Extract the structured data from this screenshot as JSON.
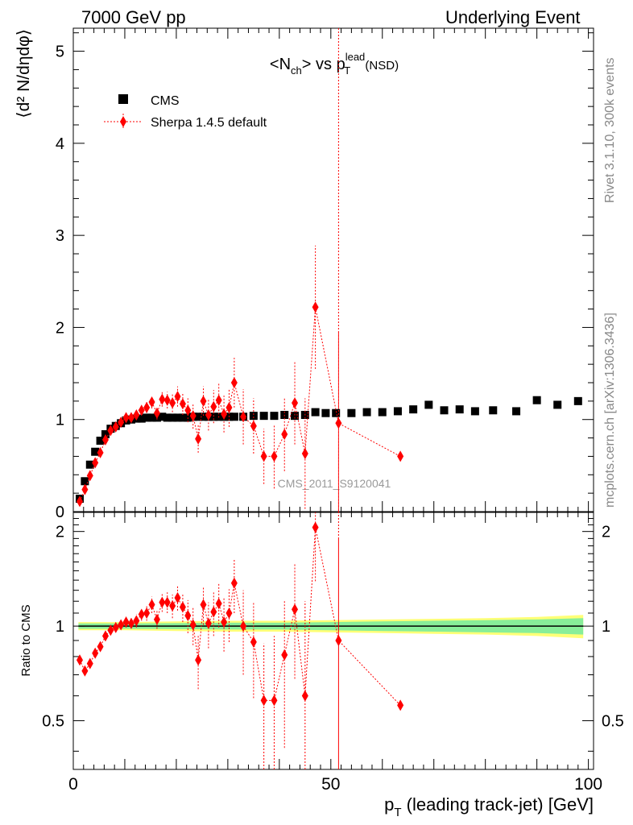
{
  "header": {
    "left": "7000 GeV pp",
    "right": "Underlying Event"
  },
  "side_texts": {
    "rivet": "Rivet 3.1.10,  300k events",
    "mcplots": "mcplots.cern.ch [arXiv:1306.3436]"
  },
  "chart_data": [
    {
      "type": "scatter",
      "panel": "main",
      "title_main": "<N",
      "title_sub": "ch",
      "title_mid": "> vs p",
      "title_sup": "lead",
      "title_sub2": "T",
      "title_tail": " (NSD)",
      "ylabel": "⟨d² N/dηdφ⟩",
      "watermark": "CMS_2011_S9120041",
      "xlim": [
        0,
        101
      ],
      "ylim": [
        0,
        5.25
      ],
      "yticks": [
        0,
        1,
        2,
        3,
        4,
        5
      ],
      "ytick_labels": [
        "0",
        "1",
        "2",
        "3",
        "4",
        "5"
      ],
      "legend": [
        "CMS",
        "Sherpa 1.4.5 default"
      ],
      "series": [
        {
          "name": "CMS",
          "color": "#000000",
          "marker": "square",
          "x": [
            1.25,
            2.25,
            3.25,
            4.25,
            5.25,
            6.25,
            7.25,
            8.25,
            9.25,
            10.25,
            11.25,
            12.25,
            13.25,
            14.25,
            15.25,
            16.25,
            17.25,
            18.25,
            19.25,
            20.25,
            21.25,
            22.25,
            23.25,
            24.25,
            25.25,
            26.25,
            27.25,
            28.25,
            29.25,
            30.25,
            31.25,
            33.0,
            35.0,
            37.0,
            39.0,
            41.0,
            43.0,
            45.0,
            47.0,
            49.0,
            51.0,
            54.0,
            57.0,
            60.0,
            63.0,
            66.0,
            69.0,
            72.0,
            75.0,
            78.0,
            81.5,
            86.0,
            90.0,
            94.0,
            98.0
          ],
          "values": [
            0.14,
            0.33,
            0.51,
            0.65,
            0.77,
            0.84,
            0.9,
            0.93,
            0.96,
            0.99,
            1.0,
            1.01,
            1.01,
            1.02,
            1.02,
            1.02,
            1.03,
            1.02,
            1.02,
            1.02,
            1.02,
            1.02,
            1.03,
            1.03,
            1.03,
            1.03,
            1.03,
            1.03,
            1.03,
            1.03,
            1.03,
            1.03,
            1.04,
            1.04,
            1.04,
            1.05,
            1.04,
            1.05,
            1.08,
            1.07,
            1.07,
            1.07,
            1.08,
            1.08,
            1.09,
            1.11,
            1.16,
            1.1,
            1.11,
            1.09,
            1.1,
            1.09,
            1.21,
            1.16,
            1.2
          ]
        },
        {
          "name": "Sherpa 1.4.5 default",
          "color": "#ff0000",
          "marker": "diamond",
          "line": "dotted",
          "x": [
            1.25,
            2.25,
            3.25,
            4.25,
            5.25,
            6.25,
            7.25,
            8.25,
            9.25,
            10.25,
            11.25,
            12.25,
            13.25,
            14.25,
            15.25,
            16.25,
            17.25,
            18.25,
            19.25,
            20.25,
            21.25,
            22.25,
            23.25,
            24.25,
            25.25,
            26.25,
            27.25,
            28.25,
            29.25,
            30.25,
            31.25,
            33.0,
            35.0,
            37.0,
            39.0,
            41.0,
            43.0,
            45.0,
            47.0,
            51.5,
            63.5
          ],
          "values": [
            0.11,
            0.24,
            0.39,
            0.53,
            0.64,
            0.78,
            0.88,
            0.92,
            0.97,
            1.02,
            1.02,
            1.05,
            1.1,
            1.13,
            1.19,
            1.07,
            1.22,
            1.21,
            1.18,
            1.25,
            1.17,
            1.1,
            1.04,
            0.79,
            1.2,
            1.05,
            1.14,
            1.21,
            1.06,
            1.13,
            1.4,
            1.03,
            0.93,
            0.6,
            0.6,
            0.84,
            1.18,
            0.63,
            2.22,
            0.96,
            0.6
          ],
          "yerr": [
            0.01,
            0.02,
            0.02,
            0.02,
            0.02,
            0.03,
            0.03,
            0.03,
            0.03,
            0.04,
            0.04,
            0.05,
            0.05,
            0.06,
            0.07,
            0.07,
            0.08,
            0.09,
            0.1,
            0.11,
            0.12,
            0.13,
            0.14,
            0.15,
            0.16,
            0.17,
            0.18,
            0.19,
            0.2,
            0.21,
            0.27,
            0.3,
            0.3,
            0.3,
            0.35,
            0.4,
            0.45,
            0.6,
            0.67,
            1.0,
            0.0
          ]
        }
      ]
    },
    {
      "type": "scatter",
      "panel": "ratio",
      "ylabel": "Ratio to CMS",
      "xlabel": "p",
      "xlabel_sub": "T",
      "xlabel_tail": " (leading track-jet) [GeV]",
      "xlim": [
        0,
        101
      ],
      "ylim": [
        0.35,
        2.3
      ],
      "xticks": [
        0,
        50,
        100
      ],
      "xtick_labels": [
        "0",
        "50",
        "100"
      ],
      "yticks": [
        0.5,
        1,
        2
      ],
      "ytick_labels": [
        "0.5",
        "1",
        "2"
      ],
      "band_colors": {
        "inner": "#88ee99",
        "outer": "#ffff77"
      },
      "series": [
        {
          "name": "Sherpa 1.4.5 default",
          "color": "#ff0000",
          "marker": "diamond",
          "line": "dotted",
          "x": [
            1.25,
            2.25,
            3.25,
            4.25,
            5.25,
            6.25,
            7.25,
            8.25,
            9.25,
            10.25,
            11.25,
            12.25,
            13.25,
            14.25,
            15.25,
            16.25,
            17.25,
            18.25,
            19.25,
            20.25,
            21.25,
            22.25,
            23.25,
            24.25,
            25.25,
            26.25,
            27.25,
            28.25,
            29.25,
            30.25,
            31.25,
            33.0,
            35.0,
            37.0,
            39.0,
            41.0,
            43.0,
            45.0,
            47.0,
            51.5,
            63.5
          ],
          "values": [
            0.78,
            0.72,
            0.76,
            0.82,
            0.86,
            0.93,
            0.97,
            0.99,
            1.01,
            1.03,
            1.02,
            1.04,
            1.09,
            1.1,
            1.17,
            1.05,
            1.19,
            1.19,
            1.16,
            1.23,
            1.15,
            1.08,
            1.01,
            0.78,
            1.17,
            1.02,
            1.11,
            1.18,
            1.03,
            1.1,
            1.37,
            1.0,
            0.89,
            0.58,
            0.58,
            0.81,
            1.13,
            0.6,
            2.06,
            0.9,
            0.56
          ],
          "yerr": [
            0.02,
            0.02,
            0.02,
            0.02,
            0.02,
            0.03,
            0.03,
            0.03,
            0.03,
            0.04,
            0.04,
            0.05,
            0.05,
            0.06,
            0.07,
            0.07,
            0.08,
            0.09,
            0.1,
            0.11,
            0.12,
            0.13,
            0.14,
            0.15,
            0.16,
            0.17,
            0.18,
            0.19,
            0.2,
            0.21,
            0.27,
            0.3,
            0.3,
            0.3,
            0.35,
            0.4,
            0.45,
            0.6,
            0.67,
            1.0,
            0.0
          ]
        }
      ]
    }
  ]
}
